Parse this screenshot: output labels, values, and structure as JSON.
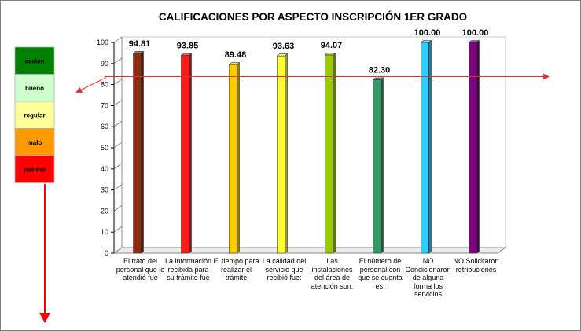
{
  "chart_data": {
    "type": "bar",
    "title": "CALIFICACIONES POR ASPECTO INSCRIPCIÓN 1ER GRADO",
    "categories": [
      "El trato del personal que lo atendió fue",
      "La información recibida para su trámite fue",
      "El tiempo para realizar el trámite",
      "La calidad del servicio que recibió fue:",
      "Las instalaciones del área de atención son:",
      "El número de personal con que se cuenta es:",
      "NO Condicionaron de alguna forma los servicios",
      "NO Solicitaron retribuciones"
    ],
    "values": [
      94.81,
      93.85,
      89.48,
      93.63,
      94.07,
      82.3,
      100.0,
      100.0
    ],
    "value_labels": [
      "94.81",
      "93.85",
      "89.48",
      "93.63",
      "94.07",
      "82.30",
      "100.00",
      "100.00"
    ],
    "bar_colors": [
      "#8B2E0F",
      "#FF1A1A",
      "#FFCC00",
      "#FFFF33",
      "#99CC00",
      "#339966",
      "#33CCFF",
      "#800080"
    ],
    "ylim": [
      0,
      100
    ],
    "yticks": [
      0,
      10,
      20,
      30,
      40,
      50,
      60,
      70,
      80,
      90,
      100
    ],
    "reference_line_value": 83,
    "reference_line_color": "#e03030",
    "xlabel": "",
    "ylabel": "",
    "grid": false
  },
  "legend_scale": [
    {
      "label": "exelen",
      "color": "#008000"
    },
    {
      "label": "bueno",
      "color": "#CCFFCC"
    },
    {
      "label": "regular",
      "color": "#FFFF99"
    },
    {
      "label": "malo",
      "color": "#FF9900"
    },
    {
      "label": "pesimo",
      "color": "#FF0000"
    }
  ]
}
